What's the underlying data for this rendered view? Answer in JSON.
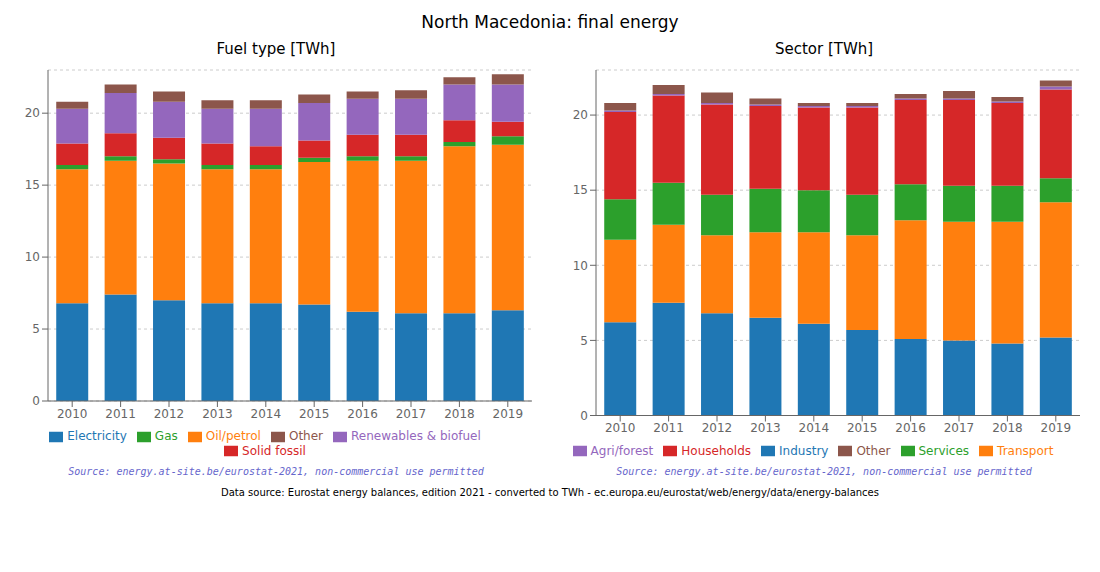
{
  "title": "North Macedonia: final energy",
  "annotations": [
    {
      "text": "Data source: Eurostat energy balances, edition 2021 - converted to TWh - ec.europa.eu/eurostat/web/energy/data/energy-balances",
      "color": "#000000"
    }
  ],
  "chart_data": [
    {
      "type": "bar",
      "title": "Fuel type [TWh]",
      "stacked": true,
      "grid": true,
      "legend": "bottom",
      "categories": [
        "2010",
        "2011",
        "2012",
        "2013",
        "2014",
        "2015",
        "2016",
        "2017",
        "2018",
        "2019"
      ],
      "series": [
        {
          "name": "Electricity",
          "color": "#1f77b4",
          "values": [
            6.8,
            7.4,
            7.0,
            6.8,
            6.8,
            6.7,
            6.2,
            6.1,
            6.1,
            6.3
          ]
        },
        {
          "name": "Oil/petrol",
          "color": "#ff7f0e",
          "values": [
            9.3,
            9.3,
            9.5,
            9.3,
            9.3,
            9.9,
            10.5,
            10.6,
            11.6,
            11.5
          ]
        },
        {
          "name": "Gas",
          "color": "#2ca02c",
          "values": [
            0.3,
            0.3,
            0.3,
            0.3,
            0.3,
            0.3,
            0.3,
            0.3,
            0.3,
            0.6
          ]
        },
        {
          "name": "Solid fossil",
          "color": "#d62728",
          "values": [
            1.5,
            1.6,
            1.5,
            1.5,
            1.3,
            1.2,
            1.5,
            1.5,
            1.5,
            1.0
          ]
        },
        {
          "name": "Renewables & biofuel",
          "color": "#9467bd",
          "values": [
            2.4,
            2.8,
            2.5,
            2.4,
            2.6,
            2.6,
            2.5,
            2.5,
            2.5,
            2.6
          ]
        },
        {
          "name": "Other",
          "color": "#8c564b",
          "values": [
            0.5,
            0.6,
            0.7,
            0.6,
            0.6,
            0.6,
            0.5,
            0.6,
            0.5,
            0.7
          ]
        }
      ],
      "ylim": [
        0,
        23
      ],
      "yticks": [
        0,
        5,
        10,
        15,
        20
      ],
      "annotations": [
        {
          "text": "Source: energy.at-site.be/eurostat-2021, non-commercial use permitted",
          "color": "#6666cc"
        }
      ]
    },
    {
      "type": "bar",
      "title": "Sector [TWh]",
      "stacked": true,
      "grid": true,
      "legend": "bottom",
      "categories": [
        "2010",
        "2011",
        "2012",
        "2013",
        "2014",
        "2015",
        "2016",
        "2017",
        "2018",
        "2019"
      ],
      "series": [
        {
          "name": "Industry",
          "color": "#1f77b4",
          "values": [
            6.2,
            7.5,
            6.8,
            6.5,
            6.1,
            5.7,
            5.1,
            5.0,
            4.8,
            5.2
          ]
        },
        {
          "name": "Transport",
          "color": "#ff7f0e",
          "values": [
            5.5,
            5.2,
            5.2,
            5.7,
            6.1,
            6.3,
            7.9,
            7.9,
            8.1,
            9.0
          ]
        },
        {
          "name": "Services",
          "color": "#2ca02c",
          "values": [
            2.7,
            2.8,
            2.7,
            2.9,
            2.8,
            2.7,
            2.4,
            2.4,
            2.4,
            1.6
          ]
        },
        {
          "name": "Households",
          "color": "#d62728",
          "values": [
            5.8,
            5.8,
            6.0,
            5.5,
            5.5,
            5.8,
            5.6,
            5.7,
            5.5,
            5.9
          ]
        },
        {
          "name": "Agri/forest",
          "color": "#9467bd",
          "values": [
            0.1,
            0.1,
            0.1,
            0.1,
            0.1,
            0.1,
            0.1,
            0.1,
            0.1,
            0.2
          ]
        },
        {
          "name": "Other",
          "color": "#8c564b",
          "values": [
            0.5,
            0.6,
            0.7,
            0.4,
            0.2,
            0.2,
            0.3,
            0.5,
            0.3,
            0.4
          ]
        }
      ],
      "ylim": [
        0,
        23
      ],
      "yticks": [
        0,
        5,
        10,
        15,
        20
      ],
      "annotations": [
        {
          "text": "Source: energy.at-site.be/eurostat-2021, non-commercial use permitted",
          "color": "#6666cc"
        }
      ]
    }
  ]
}
